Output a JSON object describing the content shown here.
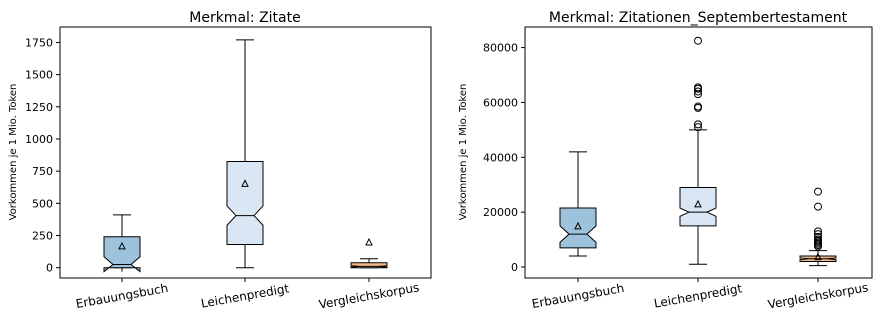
{
  "chart_data": [
    {
      "type": "boxplot",
      "title": "Merkmal: Zitate",
      "ylabel": "Vorkommen je 1 Mio. Token",
      "xlabel": "",
      "ylim": [
        -80,
        1870
      ],
      "yticks": [
        0,
        250,
        500,
        750,
        1000,
        1250,
        1500,
        1750
      ],
      "ytick_labels": [
        "0",
        "250",
        "500",
        "750",
        "1000",
        "1250",
        "1500",
        "1750"
      ],
      "notched": true,
      "grid": false,
      "categories": [
        "Erbauungsbuch",
        "Leichenpredigt",
        "Vergleichskorpus"
      ],
      "boxes": [
        {
          "category": "Erbauungsbuch",
          "color": "#9dc3dc",
          "whisker_low": 0,
          "q1": 0,
          "median": 25,
          "q3": 240,
          "whisker_high": 410,
          "notch_low": -30,
          "notch_high": 85,
          "mean": 170,
          "fliers": []
        },
        {
          "category": "Leichenpredigt",
          "color": "#d8e7f3",
          "whisker_low": 0,
          "q1": 180,
          "median": 405,
          "q3": 825,
          "whisker_high": 1770,
          "notch_low": 330,
          "notch_high": 480,
          "mean": 655,
          "fliers": []
        },
        {
          "category": "Vergleichskorpus",
          "color": "#f2ba8c",
          "whisker_low": 0,
          "q1": 0,
          "median": 10,
          "q3": 38,
          "whisker_high": 70,
          "notch_low": 5,
          "notch_high": 15,
          "mean": 200,
          "fliers": []
        }
      ]
    },
    {
      "type": "boxplot",
      "title": "Merkmal: Zitationen_Septembertestament",
      "ylabel": "Vorkommen je 1 Mio. Token",
      "xlabel": "",
      "ylim": [
        -4000,
        87500
      ],
      "yticks": [
        0,
        20000,
        40000,
        60000,
        80000
      ],
      "ytick_labels": [
        "0",
        "20000",
        "40000",
        "60000",
        "80000"
      ],
      "notched": true,
      "grid": false,
      "categories": [
        "Erbauungsbuch",
        "Leichenpredigt",
        "Vergleichskorpus"
      ],
      "boxes": [
        {
          "category": "Erbauungsbuch",
          "color": "#9dc3dc",
          "whisker_low": 4000,
          "q1": 7000,
          "median": 12000,
          "q3": 21500,
          "whisker_high": 42000,
          "notch_low": 9000,
          "notch_high": 15000,
          "mean": 15000,
          "fliers": []
        },
        {
          "category": "Leichenpredigt",
          "color": "#d8e7f3",
          "whisker_low": 1000,
          "q1": 15000,
          "median": 20000,
          "q3": 29000,
          "whisker_high": 50000,
          "notch_low": 18500,
          "notch_high": 21500,
          "mean": 23000,
          "fliers": [
            51000,
            52000,
            58000,
            58500,
            63000,
            64000,
            65000,
            65500,
            82500
          ]
        },
        {
          "category": "Vergleichskorpus",
          "color": "#f2ba8c",
          "whisker_low": 500,
          "q1": 2000,
          "median": 3000,
          "q3": 4000,
          "whisker_high": 6000,
          "notch_low": 2700,
          "notch_high": 3300,
          "mean": 3800,
          "fliers": [
            7500,
            8000,
            8500,
            9000,
            9500,
            10000,
            11000,
            12000,
            13000,
            22000,
            27500
          ]
        }
      ]
    }
  ]
}
